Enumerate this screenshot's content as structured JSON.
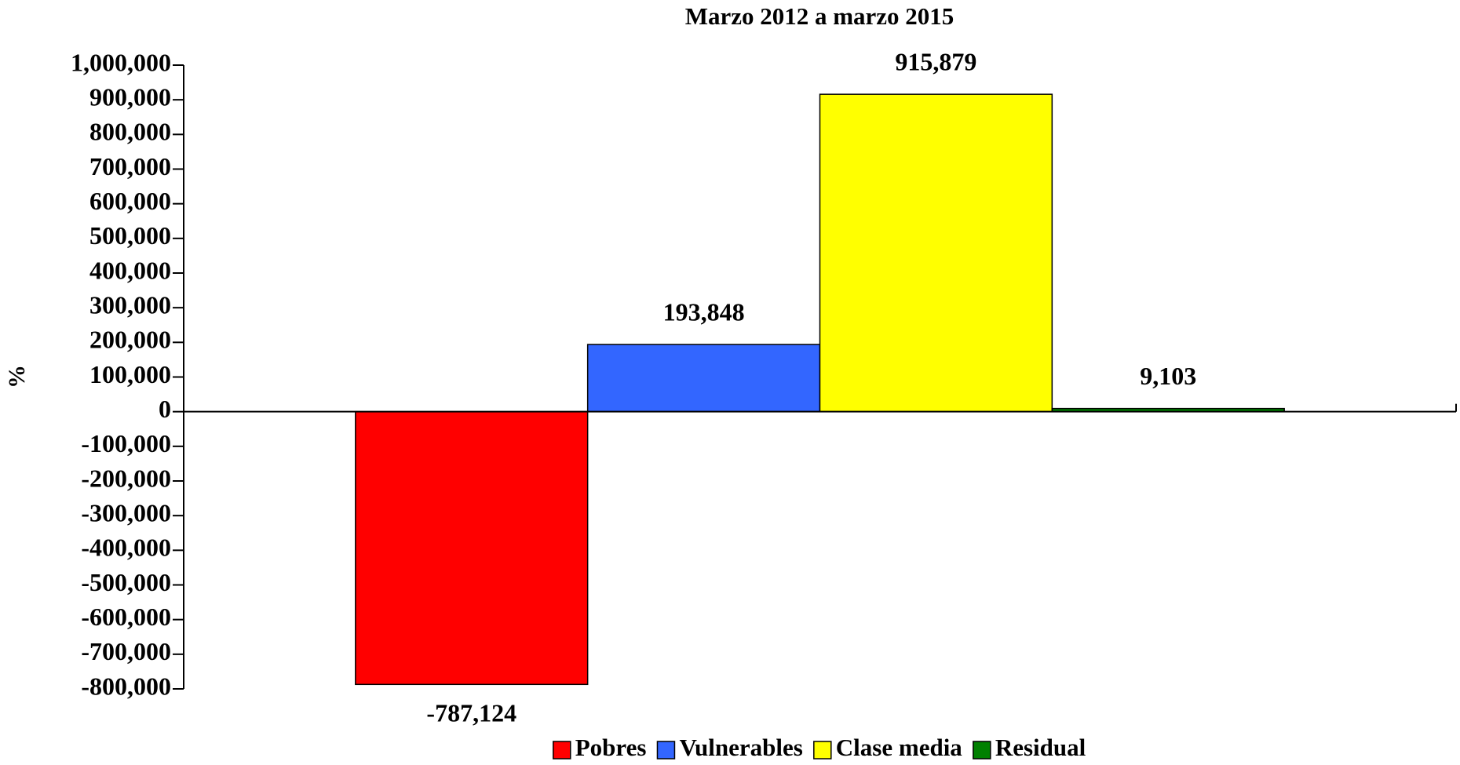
{
  "chart_data": {
    "type": "bar",
    "title": "Marzo 2012 a marzo 2015",
    "y_label": "%",
    "categories": [
      null
    ],
    "series": [
      {
        "name": "Pobres",
        "color": "#ff0000",
        "values": [
          -787124
        ],
        "value_labels": [
          "-787,124"
        ]
      },
      {
        "name": "Vulnerables",
        "color": "#3366ff",
        "values": [
          193848
        ],
        "value_labels": [
          "193,848"
        ]
      },
      {
        "name": "Clase media",
        "color": "#ffff00",
        "values": [
          915879
        ],
        "value_labels": [
          "915,879"
        ]
      },
      {
        "name": "Residual",
        "color": "#008000",
        "values": [
          9103
        ],
        "value_labels": [
          "9,103"
        ]
      }
    ],
    "ylim": [
      -800000,
      1000000
    ],
    "yticks": [
      {
        "value": -800000,
        "label": "-800,000"
      },
      {
        "value": -700000,
        "label": "-700,000"
      },
      {
        "value": -600000,
        "label": "-600,000"
      },
      {
        "value": -500000,
        "label": "-500,000"
      },
      {
        "value": -400000,
        "label": "-400,000"
      },
      {
        "value": -300000,
        "label": "-300,000"
      },
      {
        "value": -200000,
        "label": "-200,000"
      },
      {
        "value": -100000,
        "label": "-100,000"
      },
      0,
      {
        "value": 100000,
        "label": "100,000"
      },
      {
        "value": 200000,
        "label": "200,000"
      },
      {
        "value": 300000,
        "label": "300,000"
      },
      {
        "value": 400000,
        "label": "400,000"
      },
      {
        "value": 500000,
        "label": "500,000"
      },
      {
        "value": 600000,
        "label": "600,000"
      },
      {
        "value": 700000,
        "label": "700,000"
      },
      {
        "value": 800000,
        "label": "800,000"
      },
      {
        "value": 900000,
        "label": "900,000"
      },
      {
        "value": 1000000,
        "label": "1,000,000"
      }
    ],
    "legend": "bottom"
  }
}
